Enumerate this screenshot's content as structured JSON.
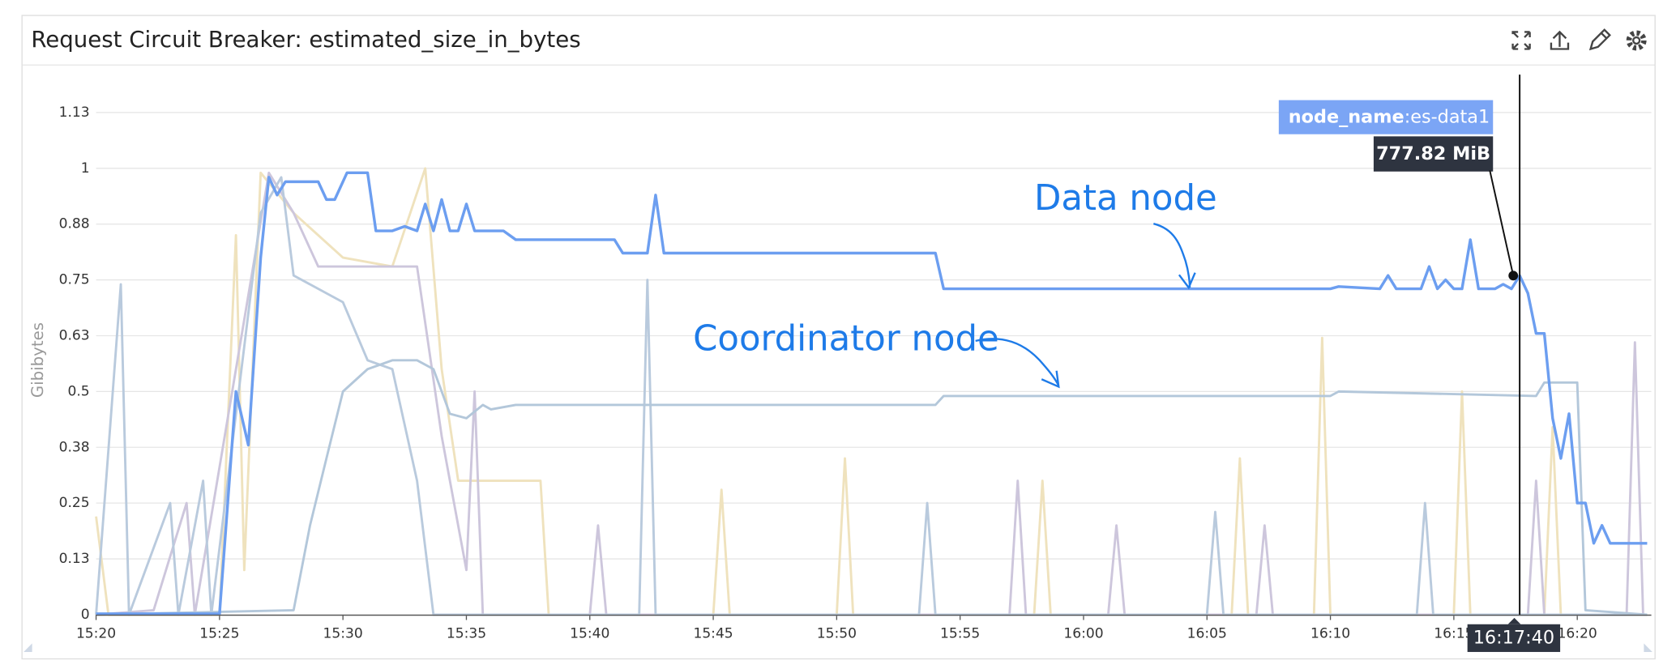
{
  "chart_data": {
    "type": "line",
    "title": "Request Circuit Breaker: estimated_size_in_bytes",
    "y_label": "Gibibytes",
    "xlim": [
      "15:20:00",
      "16:23:00"
    ],
    "xticks": [
      "15:20",
      "15:25",
      "15:30",
      "15:35",
      "15:40",
      "15:45",
      "15:50",
      "15:55",
      "16:00",
      "16:05",
      "16:10",
      "16:15",
      "16:20"
    ],
    "ylim": [
      0,
      1.21
    ],
    "yticks": [
      0,
      {
        "value": 0.125,
        "label": "0.13"
      },
      0.25,
      {
        "value": 0.375,
        "label": "0.38"
      },
      0.5,
      {
        "value": 0.625,
        "label": "0.63"
      },
      0.75,
      {
        "value": 0.875,
        "label": "0.88"
      },
      1,
      {
        "value": 1.125,
        "label": "1.13"
      }
    ],
    "grid": true,
    "series": [
      {
        "color": "#efe2bd",
        "x": [
          "15:20:00",
          "15:20:30",
          "15:25:00",
          "15:25:40",
          "15:26:00",
          "15:26:40",
          "15:28:00",
          "15:30:00",
          "15:32:00",
          "15:33:20",
          "15:34:00",
          "15:34:40",
          "15:38:00",
          "15:38:20",
          "15:45:00",
          "15:45:20",
          "15:45:40",
          "15:50:00",
          "15:50:20",
          "15:50:40",
          "15:58:00",
          "15:58:20",
          "15:58:40",
          "16:06:00",
          "16:06:20",
          "16:06:40",
          "16:09:20",
          "16:09:40",
          "16:10:00",
          "16:15:00",
          "16:15:20",
          "16:15:40",
          "16:18:40",
          "16:19:00",
          "16:19:20",
          "16:22:50"
        ],
        "values": [
          0.22,
          0,
          0,
          0.85,
          0.1,
          0.99,
          0.9,
          0.8,
          0.78,
          1.0,
          0.55,
          0.3,
          0.3,
          0,
          0,
          0.28,
          0,
          0,
          0.35,
          0,
          0,
          0.3,
          0,
          0,
          0.35,
          0,
          0,
          0.62,
          0,
          0,
          0.5,
          0,
          0,
          0.42,
          0,
          0
        ]
      },
      {
        "color": "#cdc6dc",
        "x": [
          "15:20:00",
          "15:22:20",
          "15:23:40",
          "15:24:00",
          "15:27:00",
          "15:28:00",
          "15:29:00",
          "15:33:00",
          "15:34:00",
          "15:35:00",
          "15:35:20",
          "15:35:40",
          "15:40:00",
          "15:40:20",
          "15:40:40",
          "15:57:00",
          "15:57:20",
          "15:57:40",
          "16:01:00",
          "16:01:20",
          "16:01:40",
          "16:07:00",
          "16:07:20",
          "16:07:40",
          "16:18:00",
          "16:18:20",
          "16:18:40",
          "16:22:00",
          "16:22:20",
          "16:22:40"
        ],
        "values": [
          0,
          0.01,
          0.25,
          0,
          0.99,
          0.9,
          0.78,
          0.78,
          0.4,
          0.1,
          0.5,
          0,
          0,
          0.2,
          0,
          0,
          0.3,
          0,
          0,
          0.2,
          0,
          0,
          0.2,
          0,
          0,
          0.3,
          0,
          0,
          0.61,
          0
        ]
      },
      {
        "color": "#b9cadd",
        "x": [
          "15:20:00",
          "15:21:00",
          "15:21:20",
          "15:23:00",
          "15:23:20",
          "15:24:20",
          "15:24:40",
          "15:26:40",
          "15:27:30",
          "15:28:00",
          "15:30:00",
          "15:31:00",
          "15:32:00",
          "15:33:00",
          "15:33:40",
          "15:42:00",
          "15:42:20",
          "15:42:40",
          "15:53:20",
          "15:53:40",
          "15:54:00",
          "16:05:00",
          "16:05:20",
          "16:05:40",
          "16:13:30",
          "16:13:50",
          "16:14:10",
          "16:22:50"
        ],
        "values": [
          0,
          0.74,
          0,
          0.25,
          0,
          0.3,
          0,
          0.9,
          0.98,
          0.76,
          0.7,
          0.57,
          0.55,
          0.3,
          0,
          0,
          0.75,
          0,
          0,
          0.25,
          0,
          0,
          0.23,
          0,
          0,
          0.25,
          0,
          0
        ]
      },
      {
        "color": "#b3c7da",
        "x": [
          "15:20:00",
          "15:28:00",
          "15:28:40",
          "15:29:20",
          "15:30:00",
          "15:31:00",
          "15:32:00",
          "15:33:00",
          "15:33:40",
          "15:34:20",
          "15:35:00",
          "15:35:40",
          "15:36:00",
          "15:37:00",
          "15:54:00",
          "15:54:20",
          "16:10:00",
          "16:10:20",
          "16:18:20",
          "16:18:40",
          "16:20:00",
          "16:20:20",
          "16:22:50"
        ],
        "values": [
          0,
          0.01,
          0.2,
          0.35,
          0.5,
          0.55,
          0.57,
          0.57,
          0.55,
          0.45,
          0.44,
          0.47,
          0.46,
          0.47,
          0.47,
          0.49,
          0.49,
          0.5,
          0.49,
          0.52,
          0.52,
          0.01,
          0
        ]
      },
      {
        "color": "#6c9ef0",
        "x": [
          "15:20:00",
          "15:25:00",
          "15:25:20",
          "15:25:40",
          "15:26:10",
          "15:26:40",
          "15:27:00",
          "15:27:20",
          "15:27:40",
          "15:28:30",
          "15:29:00",
          "15:29:20",
          "15:29:40",
          "15:30:10",
          "15:31:00",
          "15:31:20",
          "15:32:00",
          "15:32:30",
          "15:33:00",
          "15:33:20",
          "15:33:40",
          "15:34:00",
          "15:34:20",
          "15:34:40",
          "15:35:00",
          "15:35:20",
          "15:36:30",
          "15:37:00",
          "15:41:00",
          "15:41:20",
          "15:42:20",
          "15:42:40",
          "15:43:00",
          "15:54:00",
          "15:54:20",
          "16:10:00",
          "16:10:20",
          "16:12:00",
          "16:12:20",
          "16:12:40",
          "16:13:40",
          "16:14:00",
          "16:14:20",
          "16:14:40",
          "16:15:00",
          "16:15:20",
          "16:15:40",
          "16:16:00",
          "16:16:40",
          "16:17:00",
          "16:17:20",
          "16:17:40",
          "16:18:00",
          "16:18:20",
          "16:18:40",
          "16:19:00",
          "16:19:20",
          "16:19:40",
          "16:20:00",
          "16:20:20",
          "16:20:40",
          "16:21:00",
          "16:21:20",
          "16:22:50"
        ],
        "values": [
          0.002,
          0.002,
          0.25,
          0.5,
          0.38,
          0.8,
          0.98,
          0.94,
          0.97,
          0.97,
          0.97,
          0.93,
          0.93,
          0.99,
          0.99,
          0.86,
          0.86,
          0.87,
          0.86,
          0.92,
          0.86,
          0.93,
          0.86,
          0.86,
          0.92,
          0.86,
          0.86,
          0.84,
          0.84,
          0.81,
          0.81,
          0.94,
          0.81,
          0.81,
          0.73,
          0.73,
          0.735,
          0.73,
          0.76,
          0.73,
          0.73,
          0.78,
          0.73,
          0.75,
          0.73,
          0.73,
          0.84,
          0.73,
          0.73,
          0.74,
          0.73,
          0.7596,
          0.72,
          0.63,
          0.63,
          0.44,
          0.35,
          0.45,
          0.25,
          0.25,
          0.16,
          0.2,
          0.16,
          0.16
        ]
      }
    ],
    "annotations": [
      "Data node",
      "Coordinator node"
    ],
    "tooltip": {
      "series": 4,
      "time": "16:17:40",
      "x_label": "16:17:40",
      "tag_key": "node_name",
      "tag_value": ":es-data1",
      "value_label": "777.82 MiB"
    }
  }
}
